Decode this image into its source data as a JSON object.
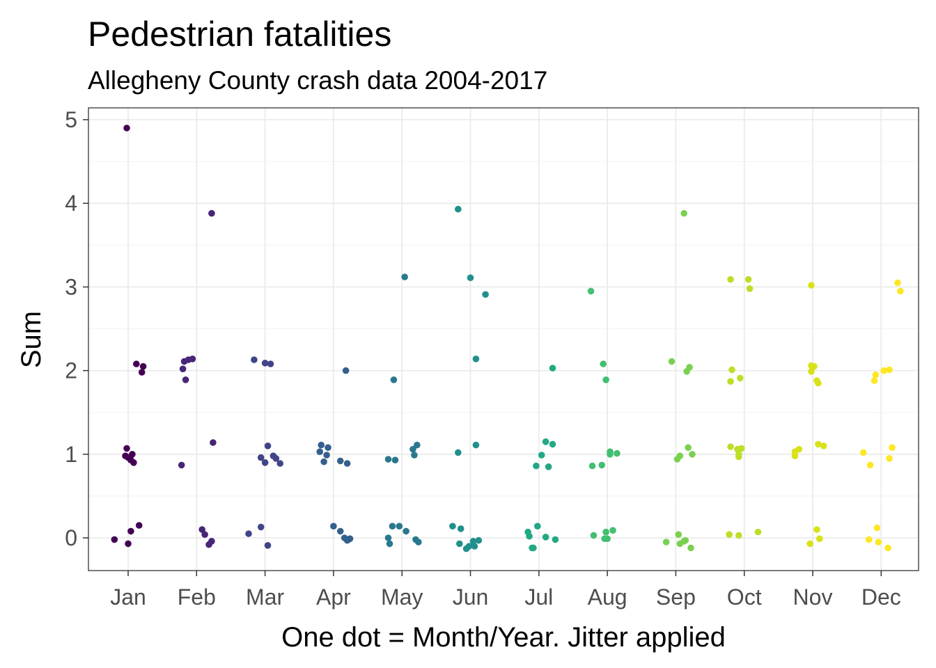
{
  "chart_data": {
    "type": "scatter",
    "title": "Pedestrian fatalities",
    "subtitle": "Allegheny County crash data 2004-2017",
    "xlabel": "One dot = Month/Year. Jitter applied",
    "ylabel": "Sum",
    "categories": [
      "Jan",
      "Feb",
      "Mar",
      "Apr",
      "May",
      "Jun",
      "Jul",
      "Aug",
      "Sep",
      "Oct",
      "Nov",
      "Dec"
    ],
    "y_ticks": [
      "0",
      "1",
      "2",
      "3",
      "4",
      "5"
    ],
    "ylim": [
      -0.38,
      5.15
    ],
    "grid": true,
    "color_scale": "viridis, Jan dark purple to Dec yellow",
    "series": [
      {
        "category": "Jan",
        "color": "#440154",
        "points": [
          [
            -0.2,
            -0.02
          ],
          [
            0.0,
            -0.07
          ],
          [
            0.04,
            0.08
          ],
          [
            0.16,
            0.15
          ],
          [
            -0.04,
            0.98
          ],
          [
            -0.02,
            1.07
          ],
          [
            0.0,
            0.96
          ],
          [
            0.04,
            0.93
          ],
          [
            0.06,
            1.0
          ],
          [
            0.08,
            0.9
          ],
          [
            -0.02,
            4.9
          ],
          [
            0.12,
            2.08
          ],
          [
            0.2,
            1.98
          ],
          [
            0.22,
            2.05
          ]
        ]
      },
      {
        "category": "Feb",
        "color": "#482576",
        "points": [
          [
            -0.22,
            0.87
          ],
          [
            -0.2,
            2.02
          ],
          [
            -0.18,
            2.11
          ],
          [
            -0.16,
            1.89
          ],
          [
            -0.12,
            2.13
          ],
          [
            -0.06,
            2.14
          ],
          [
            0.08,
            0.1
          ],
          [
            0.12,
            0.04
          ],
          [
            0.18,
            -0.08
          ],
          [
            0.22,
            -0.04
          ],
          [
            0.22,
            3.88
          ],
          [
            0.24,
            1.14
          ]
        ]
      },
      {
        "category": "Mar",
        "color": "#414487",
        "points": [
          [
            -0.24,
            0.05
          ],
          [
            -0.16,
            2.13
          ],
          [
            -0.06,
            0.13
          ],
          [
            -0.06,
            0.96
          ],
          [
            0.0,
            0.9
          ],
          [
            0.0,
            2.09
          ],
          [
            0.04,
            1.1
          ],
          [
            0.04,
            -0.09
          ],
          [
            0.08,
            2.08
          ],
          [
            0.12,
            0.98
          ],
          [
            0.16,
            0.95
          ],
          [
            0.22,
            0.89
          ]
        ]
      },
      {
        "category": "Apr",
        "color": "#35608D",
        "points": [
          [
            -0.2,
            1.03
          ],
          [
            -0.18,
            1.11
          ],
          [
            -0.14,
            0.91
          ],
          [
            -0.1,
            0.99
          ],
          [
            -0.08,
            1.08
          ],
          [
            0.0,
            0.14
          ],
          [
            0.1,
            0.92
          ],
          [
            0.1,
            0.08
          ],
          [
            0.16,
            0.0
          ],
          [
            0.18,
            2.0
          ],
          [
            0.2,
            0.89
          ],
          [
            0.2,
            -0.03
          ],
          [
            0.22,
            -0.02
          ],
          [
            0.24,
            -0.01
          ]
        ]
      },
      {
        "category": "May",
        "color": "#2A788E",
        "points": [
          [
            -0.2,
            0.94
          ],
          [
            -0.2,
            0.0
          ],
          [
            -0.18,
            -0.07
          ],
          [
            -0.14,
            0.14
          ],
          [
            -0.12,
            1.89
          ],
          [
            -0.1,
            0.93
          ],
          [
            -0.04,
            0.14
          ],
          [
            0.04,
            3.12
          ],
          [
            0.06,
            0.08
          ],
          [
            0.16,
            1.06
          ],
          [
            0.18,
            0.99
          ],
          [
            0.2,
            -0.02
          ],
          [
            0.22,
            1.11
          ],
          [
            0.24,
            -0.05
          ]
        ]
      },
      {
        "category": "Jun",
        "color": "#21908C",
        "points": [
          [
            -0.26,
            0.14
          ],
          [
            -0.18,
            3.93
          ],
          [
            -0.18,
            1.02
          ],
          [
            -0.16,
            -0.07
          ],
          [
            -0.14,
            0.11
          ],
          [
            -0.06,
            -0.13
          ],
          [
            -0.02,
            -0.1
          ],
          [
            0.0,
            3.11
          ],
          [
            0.04,
            -0.04
          ],
          [
            0.06,
            -0.1
          ],
          [
            0.08,
            2.14
          ],
          [
            0.08,
            1.11
          ],
          [
            0.12,
            -0.03
          ],
          [
            0.22,
            2.91
          ]
        ]
      },
      {
        "category": "Jul",
        "color": "#22A884",
        "points": [
          [
            -0.16,
            0.07
          ],
          [
            -0.14,
            0.02
          ],
          [
            -0.1,
            -0.12
          ],
          [
            -0.08,
            -0.12
          ],
          [
            -0.04,
            0.86
          ],
          [
            -0.02,
            0.14
          ],
          [
            0.04,
            0.99
          ],
          [
            0.1,
            1.15
          ],
          [
            0.1,
            0.01
          ],
          [
            0.14,
            0.85
          ],
          [
            0.2,
            1.12
          ],
          [
            0.2,
            2.03
          ],
          [
            0.24,
            -0.02
          ]
        ]
      },
      {
        "category": "Aug",
        "color": "#43BF71",
        "points": [
          [
            -0.24,
            2.95
          ],
          [
            -0.22,
            0.86
          ],
          [
            -0.2,
            0.03
          ],
          [
            -0.08,
            0.87
          ],
          [
            -0.06,
            2.08
          ],
          [
            -0.04,
            -0.01
          ],
          [
            -0.02,
            1.89
          ],
          [
            -0.02,
            0.07
          ],
          [
            0.0,
            -0.01
          ],
          [
            0.04,
            1.03
          ],
          [
            0.04,
            1.0
          ],
          [
            0.08,
            0.09
          ],
          [
            0.14,
            1.01
          ]
        ]
      },
      {
        "category": "Sep",
        "color": "#7AD151",
        "points": [
          [
            -0.14,
            -0.05
          ],
          [
            -0.06,
            2.11
          ],
          [
            0.02,
            0.94
          ],
          [
            0.04,
            0.04
          ],
          [
            0.06,
            -0.07
          ],
          [
            0.06,
            0.98
          ],
          [
            0.12,
            -0.04
          ],
          [
            0.12,
            3.88
          ],
          [
            0.14,
            -0.03
          ],
          [
            0.16,
            1.99
          ],
          [
            0.18,
            1.08
          ],
          [
            0.2,
            2.04
          ],
          [
            0.22,
            -0.12
          ],
          [
            0.24,
            1.0
          ]
        ]
      },
      {
        "category": "Oct",
        "color": "#BBDF27",
        "points": [
          [
            -0.22,
            0.04
          ],
          [
            -0.2,
            1.09
          ],
          [
            -0.2,
            1.87
          ],
          [
            -0.2,
            3.09
          ],
          [
            -0.18,
            2.01
          ],
          [
            -0.1,
            1.06
          ],
          [
            -0.08,
            1.0
          ],
          [
            -0.08,
            0.97
          ],
          [
            -0.08,
            0.03
          ],
          [
            -0.06,
            1.91
          ],
          [
            -0.04,
            1.07
          ],
          [
            0.06,
            3.09
          ],
          [
            0.08,
            2.98
          ],
          [
            0.2,
            0.07
          ]
        ]
      },
      {
        "category": "Nov",
        "color": "#D8E219",
        "points": [
          [
            -0.26,
            0.98
          ],
          [
            -0.26,
            1.03
          ],
          [
            -0.2,
            1.06
          ],
          [
            -0.04,
            -0.07
          ],
          [
            -0.02,
            2.06
          ],
          [
            -0.02,
            1.99
          ],
          [
            -0.02,
            3.02
          ],
          [
            0.02,
            2.05
          ],
          [
            0.06,
            0.1
          ],
          [
            0.06,
            1.88
          ],
          [
            0.08,
            1.85
          ],
          [
            0.08,
            1.12
          ],
          [
            0.1,
            -0.01
          ],
          [
            0.16,
            1.1
          ]
        ]
      },
      {
        "category": "Dec",
        "color": "#FDE725",
        "points": [
          [
            -0.26,
            1.02
          ],
          [
            -0.18,
            -0.02
          ],
          [
            -0.16,
            0.87
          ],
          [
            -0.1,
            1.88
          ],
          [
            -0.08,
            1.95
          ],
          [
            -0.06,
            0.12
          ],
          [
            -0.04,
            -0.05
          ],
          [
            0.04,
            2.0
          ],
          [
            0.1,
            -0.12
          ],
          [
            0.12,
            0.95
          ],
          [
            0.12,
            2.01
          ],
          [
            0.16,
            1.08
          ],
          [
            0.24,
            3.05
          ],
          [
            0.28,
            2.95
          ]
        ]
      }
    ]
  }
}
